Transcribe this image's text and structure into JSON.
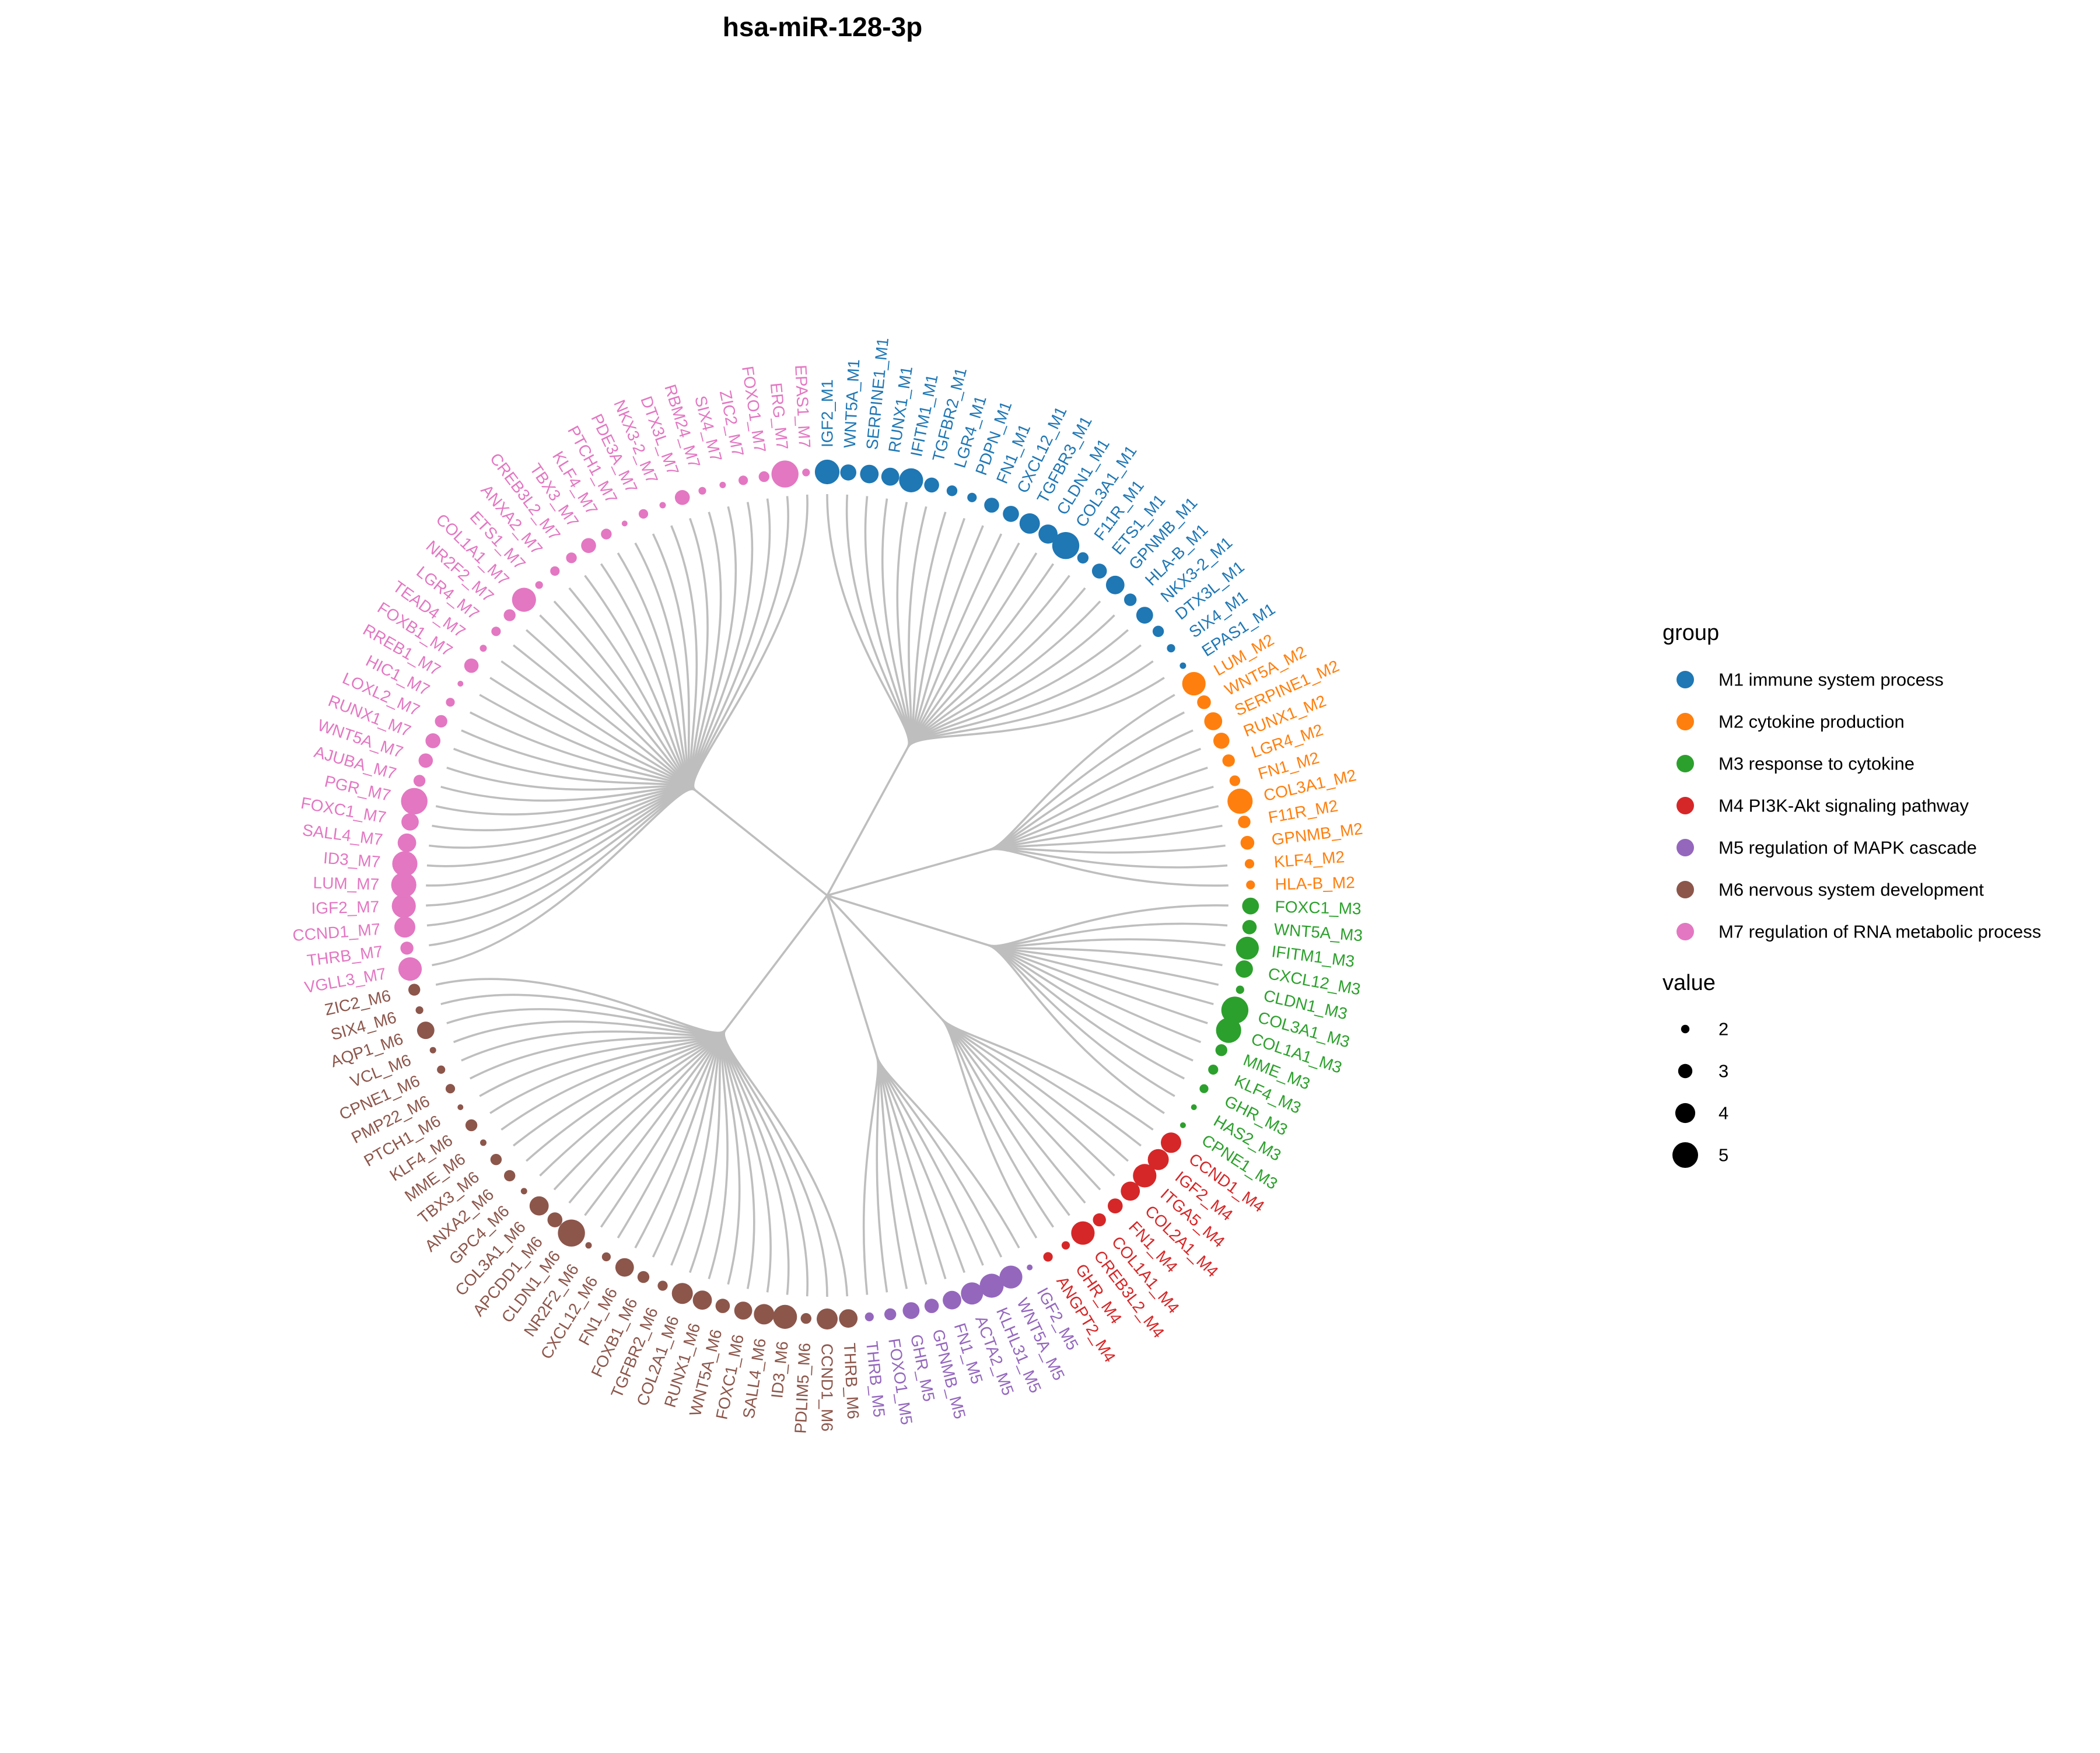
{
  "chart_data": {
    "type": "circular-dendrogram",
    "title": "hsa-miR-128-3p",
    "groups": [
      {
        "id": "M1",
        "name": "M1 immune system process",
        "color": "#1f77b4",
        "leaves": [
          {
            "label": "IGF2_M1",
            "value": 4.6
          },
          {
            "label": "WNT5A_M1",
            "value": 3.2
          },
          {
            "label": "SERPINE1_M1",
            "value": 3.6
          },
          {
            "label": "RUNX1_M1",
            "value": 3.5
          },
          {
            "label": "IFITM1_M1",
            "value": 4.5
          },
          {
            "label": "TGFBR2_M1",
            "value": 3.0
          },
          {
            "label": "LGR4_M1",
            "value": 2.3
          },
          {
            "label": "PDPN_M1",
            "value": 2.1
          },
          {
            "label": "FN1_M1",
            "value": 3.0
          },
          {
            "label": "CXCL12_M1",
            "value": 3.2
          },
          {
            "label": "TGFBR3_M1",
            "value": 3.9
          },
          {
            "label": "CLDN1_M1",
            "value": 3.7
          },
          {
            "label": "COL3A1_M1",
            "value": 5.0
          },
          {
            "label": "F11R_M1",
            "value": 2.4
          },
          {
            "label": "ETS1_M1",
            "value": 3.0
          },
          {
            "label": "GPNMB_M1",
            "value": 3.6
          },
          {
            "label": "HLA-B_M1",
            "value": 2.6
          },
          {
            "label": "NKX3-2_M1",
            "value": 3.3
          },
          {
            "label": "DTX3L_M1",
            "value": 2.4
          },
          {
            "label": "SIX4_M1",
            "value": 1.9
          },
          {
            "label": "EPAS1_M1",
            "value": 1.6
          }
        ]
      },
      {
        "id": "M2",
        "name": "M2 cytokine production",
        "color": "#ff7f0e",
        "leaves": [
          {
            "label": "LUM_M2",
            "value": 4.4
          },
          {
            "label": "WNT5A_M2",
            "value": 2.8
          },
          {
            "label": "SERPINE1_M2",
            "value": 3.5
          },
          {
            "label": "RUNX1_M2",
            "value": 3.2
          },
          {
            "label": "LGR4_M2",
            "value": 2.6
          },
          {
            "label": "FN1_M2",
            "value": 2.3
          },
          {
            "label": "COL3A1_M2",
            "value": 4.7
          },
          {
            "label": "F11R_M2",
            "value": 2.6
          },
          {
            "label": "GPNMB_M2",
            "value": 2.8
          },
          {
            "label": "KLF4_M2",
            "value": 2.1
          },
          {
            "label": "HLA-B_M2",
            "value": 2.0
          }
        ]
      },
      {
        "id": "M3",
        "name": "M3 response to cytokine",
        "color": "#2ca02c",
        "leaves": [
          {
            "label": "FOXC1_M3",
            "value": 3.3
          },
          {
            "label": "WNT5A_M3",
            "value": 2.9
          },
          {
            "label": "IFITM1_M3",
            "value": 4.3
          },
          {
            "label": "CXCL12_M3",
            "value": 3.4
          },
          {
            "label": "CLDN1_M3",
            "value": 1.9
          },
          {
            "label": "COL3A1_M3",
            "value": 5.0
          },
          {
            "label": "COL1A1_M3",
            "value": 4.7
          },
          {
            "label": "MME_M3",
            "value": 2.5
          },
          {
            "label": "KLF4_M3",
            "value": 2.2
          },
          {
            "label": "GHR_M3",
            "value": 2.0
          },
          {
            "label": "HAS2_M3",
            "value": 1.5
          },
          {
            "label": "CPNE1_M3",
            "value": 1.5
          }
        ]
      },
      {
        "id": "M4",
        "name": "M4 PI3K-Akt signaling pathway",
        "color": "#d62728",
        "leaves": [
          {
            "label": "CCND1_M4",
            "value": 3.9
          },
          {
            "label": "IGF2_M4",
            "value": 4.0
          },
          {
            "label": "ITGA5_M4",
            "value": 4.4
          },
          {
            "label": "COL2A1_M4",
            "value": 3.7
          },
          {
            "label": "FN1_M4",
            "value": 3.0
          },
          {
            "label": "COL1A1_M4",
            "value": 2.7
          },
          {
            "label": "CREB3L2_M4",
            "value": 4.4
          },
          {
            "label": "GHR_M4",
            "value": 1.9
          },
          {
            "label": "ANGPT2_M4",
            "value": 2.1
          }
        ]
      },
      {
        "id": "M5",
        "name": "M5 regulation of MAPK cascade",
        "color": "#9467bd",
        "leaves": [
          {
            "label": "IGF2_M5",
            "value": 1.5
          },
          {
            "label": "WNT5A_M5",
            "value": 4.3
          },
          {
            "label": "KLHL31_M5",
            "value": 4.5
          },
          {
            "label": "ACTA2_M5",
            "value": 4.2
          },
          {
            "label": "FN1_M5",
            "value": 3.6
          },
          {
            "label": "GPNMB_M5",
            "value": 2.9
          },
          {
            "label": "GHR_M5",
            "value": 3.3
          },
          {
            "label": "FOXO1_M5",
            "value": 2.5
          },
          {
            "label": "THRB_M5",
            "value": 2.0
          }
        ]
      },
      {
        "id": "M6",
        "name": "M6 nervous system development",
        "color": "#8c564b",
        "leaves": [
          {
            "label": "THRB_M6",
            "value": 3.6
          },
          {
            "label": "CCND1_M6",
            "value": 4.0
          },
          {
            "label": "PDLIM5_M6",
            "value": 2.3
          },
          {
            "label": "ID3_M6",
            "value": 4.5
          },
          {
            "label": "SALL4_M6",
            "value": 3.9
          },
          {
            "label": "FOXC1_M6",
            "value": 3.5
          },
          {
            "label": "WNT5A_M6",
            "value": 2.9
          },
          {
            "label": "RUNX1_M6",
            "value": 3.7
          },
          {
            "label": "COL2A1_M6",
            "value": 4.0
          },
          {
            "label": "TGFBR2_M6",
            "value": 2.2
          },
          {
            "label": "FOXB1_M6",
            "value": 2.5
          },
          {
            "label": "FN1_M6",
            "value": 3.6
          },
          {
            "label": "CXCL12_M6",
            "value": 2.0
          },
          {
            "label": "NR2F2_M6",
            "value": 1.6
          },
          {
            "label": "CLDN1_M6",
            "value": 5.0
          },
          {
            "label": "APCDD1_M6",
            "value": 3.0
          },
          {
            "label": "COL3A1_M6",
            "value": 3.7
          },
          {
            "label": "GPC4_M6",
            "value": 1.6
          },
          {
            "label": "ANXA2_M6",
            "value": 2.4
          },
          {
            "label": "TBX3_M6",
            "value": 2.4
          },
          {
            "label": "MME_M6",
            "value": 1.6
          },
          {
            "label": "KLF4_M6",
            "value": 2.5
          },
          {
            "label": "PTCH1_M6",
            "value": 1.5
          },
          {
            "label": "PMP22_M6",
            "value": 2.1
          },
          {
            "label": "CPNE1_M6",
            "value": 1.9
          },
          {
            "label": "VCL_M6",
            "value": 1.6
          },
          {
            "label": "AQP1_M6",
            "value": 3.4
          },
          {
            "label": "SIX4_M6",
            "value": 1.8
          },
          {
            "label": "ZIC2_M6",
            "value": 2.5
          }
        ]
      },
      {
        "id": "M7",
        "name": "M7 regulation of RNA metabolic process",
        "color": "#e377c2",
        "leaves": [
          {
            "label": "VGLL3_M7",
            "value": 4.4
          },
          {
            "label": "THRB_M7",
            "value": 2.7
          },
          {
            "label": "CCND1_M7",
            "value": 4.0
          },
          {
            "label": "IGF2_M7",
            "value": 4.5
          },
          {
            "label": "LUM_M7",
            "value": 4.7
          },
          {
            "label": "ID3_M7",
            "value": 4.7
          },
          {
            "label": "SALL4_M7",
            "value": 3.6
          },
          {
            "label": "FOXC1_M7",
            "value": 3.4
          },
          {
            "label": "PGR_M7",
            "value": 4.9
          },
          {
            "label": "AJUBA_M7",
            "value": 2.5
          },
          {
            "label": "WNT5A_M7",
            "value": 2.9
          },
          {
            "label": "RUNX1_M7",
            "value": 3.0
          },
          {
            "label": "LOXL2_M7",
            "value": 2.6
          },
          {
            "label": "HIC1_M7",
            "value": 2.0
          },
          {
            "label": "RREB1_M7",
            "value": 1.5
          },
          {
            "label": "FOXB1_M7",
            "value": 2.9
          },
          {
            "label": "TEAD4_M7",
            "value": 1.7
          },
          {
            "label": "LGR4_M7",
            "value": 2.1
          },
          {
            "label": "NR2F2_M7",
            "value": 2.5
          },
          {
            "label": "COL1A1_M7",
            "value": 4.5
          },
          {
            "label": "ETS1_M7",
            "value": 1.8
          },
          {
            "label": "ANXA2_M7",
            "value": 2.1
          },
          {
            "label": "CREB3L2_M7",
            "value": 2.3
          },
          {
            "label": "TBX3_M7",
            "value": 3.0
          },
          {
            "label": "KLF4_M7",
            "value": 2.3
          },
          {
            "label": "PTCH1_M7",
            "value": 1.5
          },
          {
            "label": "PDE3A_M7",
            "value": 2.1
          },
          {
            "label": "NKX3-2_M7",
            "value": 1.6
          },
          {
            "label": "DTX3L_M7",
            "value": 3.0
          },
          {
            "label": "RBM24_M7",
            "value": 1.8
          },
          {
            "label": "SIX4_M7",
            "value": 1.6
          },
          {
            "label": "ZIC2_M7",
            "value": 2.1
          },
          {
            "label": "FOXO1_M7",
            "value": 2.3
          },
          {
            "label": "ERG_M7",
            "value": 5.0
          },
          {
            "label": "EPAS1_M7",
            "value": 1.8
          }
        ]
      }
    ],
    "legend": {
      "group_title": "group",
      "value_title": "value",
      "value_ticks": [
        2,
        3,
        4,
        5
      ],
      "placement": "right"
    }
  }
}
